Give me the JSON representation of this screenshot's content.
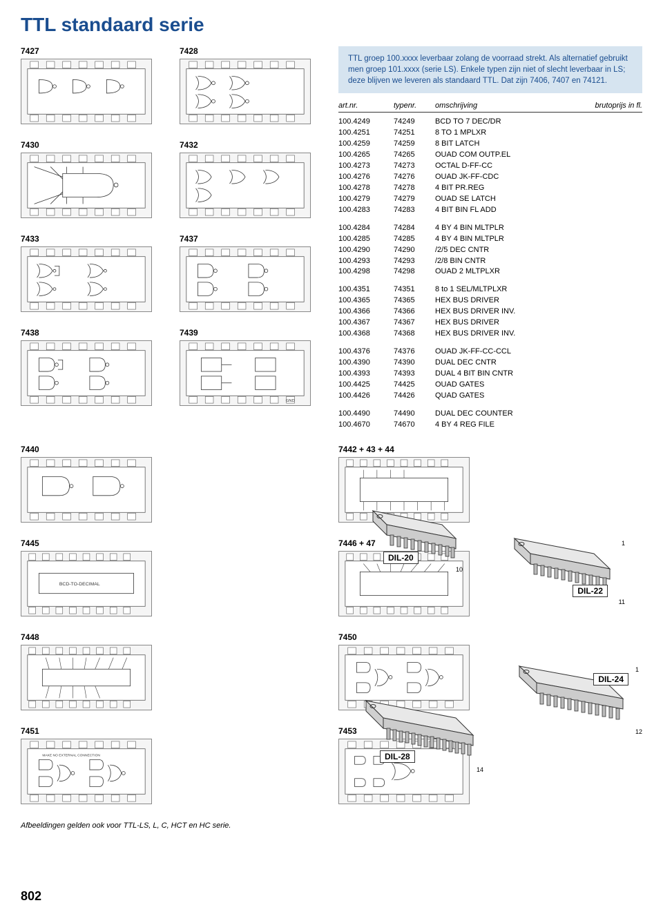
{
  "title": "TTL standaard serie",
  "info_text": "TTL groep 100.xxxx leverbaar zolang de voorraad strekt. Als alternatief gebruikt men groep 101.xxxx (serie LS). Enkele typen zijn niet of slecht leverbaar in LS; deze blijven we leveren als standaard TTL. Dat zijn 7406, 7407 en 74121.",
  "columns": {
    "art": "art.nr.",
    "type": "typenr.",
    "desc": "omschrijving",
    "price": "brutoprijs in fl."
  },
  "diagram_labels": {
    "d7427": "7427",
    "d7428": "7428",
    "d7430": "7430",
    "d7432": "7432",
    "d7433": "7433",
    "d7437": "7437",
    "d7438": "7438",
    "d7439": "7439",
    "d7440": "7440",
    "d7442": "7442 + 43 + 44",
    "d7445": "7445",
    "d7446": "7446 + 47",
    "d7448": "7448",
    "d7450": "7450",
    "d7451": "7451",
    "d7453": "7453"
  },
  "groups": [
    [
      {
        "art": "100.4249",
        "type": "74249",
        "desc": "BCD TO 7 DEC/DR"
      },
      {
        "art": "100.4251",
        "type": "74251",
        "desc": "8 TO 1 MPLXR"
      },
      {
        "art": "100.4259",
        "type": "74259",
        "desc": "8 BIT LATCH"
      },
      {
        "art": "100.4265",
        "type": "74265",
        "desc": "OUAD COM OUTP.EL"
      },
      {
        "art": "100.4273",
        "type": "74273",
        "desc": "OCTAL D-FF-CC"
      },
      {
        "art": "100.4276",
        "type": "74276",
        "desc": "OUAD JK-FF-CDC"
      },
      {
        "art": "100.4278",
        "type": "74278",
        "desc": "4 BIT PR.REG"
      },
      {
        "art": "100.4279",
        "type": "74279",
        "desc": "OUAD SE LATCH"
      },
      {
        "art": "100.4283",
        "type": "74283",
        "desc": "4 BIT BIN FL ADD"
      }
    ],
    [
      {
        "art": "100.4284",
        "type": "74284",
        "desc": "4 BY 4 BIN MLTPLR"
      },
      {
        "art": "100.4285",
        "type": "74285",
        "desc": "4 BY 4 BIN MLTPLR"
      },
      {
        "art": "100.4290",
        "type": "74290",
        "desc": "/2/5 DEC CNTR"
      },
      {
        "art": "100.4293",
        "type": "74293",
        "desc": "/2/8 BIN CNTR"
      },
      {
        "art": "100.4298",
        "type": "74298",
        "desc": "OUAD 2 MLTPLXR"
      }
    ],
    [
      {
        "art": "100.4351",
        "type": "74351",
        "desc": "8 to 1 SEL/MLTPLXR"
      },
      {
        "art": "100.4365",
        "type": "74365",
        "desc": "HEX BUS DRIVER"
      },
      {
        "art": "100.4366",
        "type": "74366",
        "desc": "HEX BUS DRIVER INV."
      },
      {
        "art": "100.4367",
        "type": "74367",
        "desc": "HEX BUS DRIVER"
      },
      {
        "art": "100.4368",
        "type": "74368",
        "desc": "HEX BUS DRIVER INV."
      }
    ],
    [
      {
        "art": "100.4376",
        "type": "74376",
        "desc": "OUAD JK-FF-CC-CCL"
      },
      {
        "art": "100.4390",
        "type": "74390",
        "desc": "DUAL DEC CNTR"
      },
      {
        "art": "100.4393",
        "type": "74393",
        "desc": "DUAL 4 BIT BIN CNTR"
      },
      {
        "art": "100.4425",
        "type": "74425",
        "desc": "OUAD GATES"
      },
      {
        "art": "100.4426",
        "type": "74426",
        "desc": "QUAD GATES"
      }
    ],
    [
      {
        "art": "100.4490",
        "type": "74490",
        "desc": "DUAL DEC COUNTER"
      },
      {
        "art": "100.4670",
        "type": "74670",
        "desc": "4 BY 4 REG FILE"
      }
    ]
  ],
  "dil_labels": {
    "dil20": "DIL-20",
    "dil22": "DIL-22",
    "dil24": "DIL-24",
    "dil28": "DIL-28"
  },
  "dil_pins": {
    "p1": "1",
    "p10": "10",
    "p11": "11",
    "p12": "12",
    "p14": "14"
  },
  "footnote": "Afbeeldingen gelden ook voor TTL-LS, L, C, HCT en HC serie.",
  "page_num": "802",
  "colors": {
    "title": "#1a4d8f",
    "infobox_bg": "#d6e4f0",
    "text": "#000000"
  }
}
